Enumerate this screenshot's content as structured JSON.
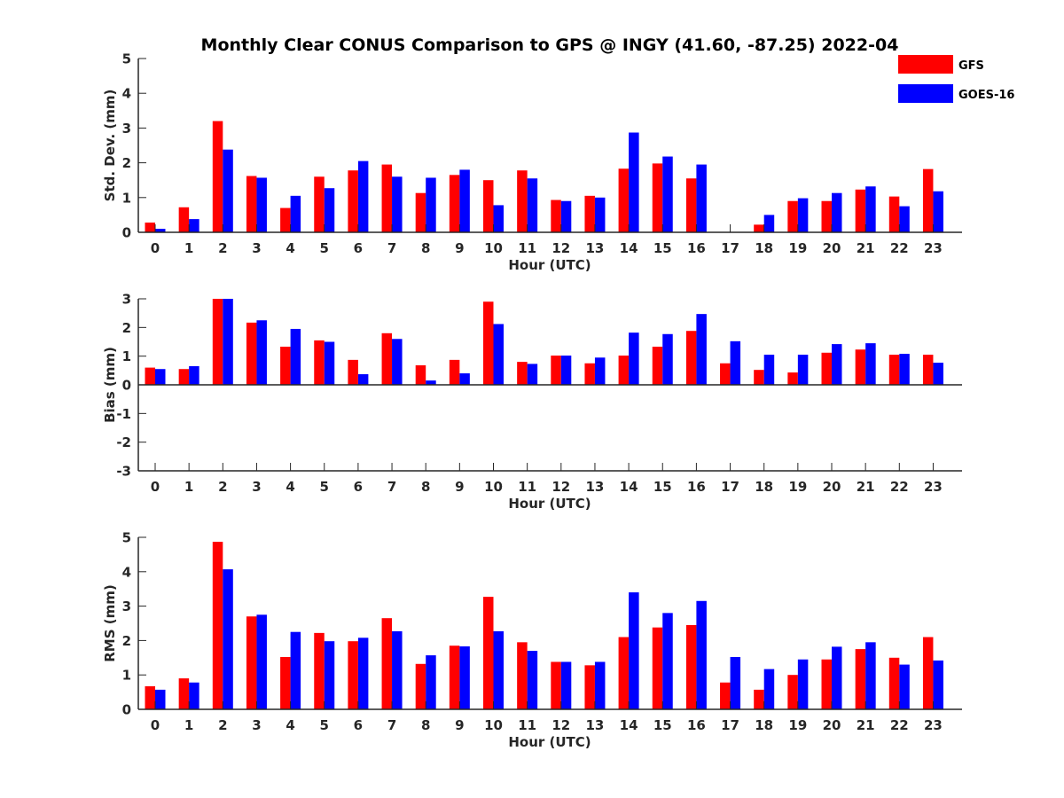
{
  "chart_data": {
    "title": "Monthly Clear CONUS Comparison to GPS @ INGY (41.60, -87.25) 2022-04",
    "legend": {
      "placement": "top-right",
      "entries": [
        "GFS",
        "GOES-16"
      ]
    },
    "colors": {
      "GFS": "#ff0000",
      "GOES-16": "#0000ff"
    },
    "categories": [
      "0",
      "1",
      "2",
      "3",
      "4",
      "5",
      "6",
      "7",
      "8",
      "9",
      "10",
      "11",
      "12",
      "13",
      "14",
      "15",
      "16",
      "17",
      "18",
      "19",
      "20",
      "21",
      "22",
      "23"
    ],
    "charts": [
      {
        "type": "bar",
        "xlabel": "Hour (UTC)",
        "ylabel": "Std. Dev. (mm)",
        "ylim": [
          0,
          5
        ],
        "yticks": [
          0,
          1,
          2,
          3,
          4,
          5
        ],
        "series": [
          {
            "name": "GFS",
            "values": [
              0.28,
              0.72,
              3.2,
              1.62,
              0.7,
              1.6,
              1.78,
              1.95,
              1.13,
              1.65,
              1.5,
              1.78,
              0.93,
              1.05,
              1.83,
              1.98,
              1.55,
              0,
              0.22,
              0.9,
              0.9,
              1.23,
              1.03,
              1.82
            ]
          },
          {
            "name": "GOES-16",
            "values": [
              0.1,
              0.38,
              2.38,
              1.57,
              1.05,
              1.27,
              2.05,
              1.6,
              1.57,
              1.8,
              0.78,
              1.55,
              0.9,
              1.0,
              2.87,
              2.18,
              1.95,
              0,
              0.5,
              0.98,
              1.13,
              1.32,
              0.75,
              1.18
            ]
          }
        ]
      },
      {
        "type": "bar",
        "xlabel": "Hour (UTC)",
        "ylabel": "Bias (mm)",
        "ylim": [
          -3,
          3
        ],
        "yticks": [
          -3,
          -2,
          -1,
          0,
          1,
          2,
          3
        ],
        "series": [
          {
            "name": "GFS",
            "values": [
              0.6,
              0.55,
              3.0,
              2.17,
              1.33,
              1.55,
              0.87,
              1.8,
              0.68,
              0.87,
              2.9,
              0.8,
              1.02,
              0.75,
              1.02,
              1.33,
              1.88,
              0.75,
              0.52,
              0.43,
              1.12,
              1.23,
              1.05,
              1.05
            ]
          },
          {
            "name": "GOES-16",
            "values": [
              0.55,
              0.65,
              3.0,
              2.25,
              1.95,
              1.5,
              0.37,
              1.6,
              0.15,
              0.4,
              2.12,
              0.73,
              1.02,
              0.95,
              1.82,
              1.77,
              2.47,
              1.52,
              1.05,
              1.05,
              1.42,
              1.45,
              1.08,
              0.77
            ]
          }
        ]
      },
      {
        "type": "bar",
        "xlabel": "Hour (UTC)",
        "ylabel": "RMS (mm)",
        "ylim": [
          0,
          5
        ],
        "yticks": [
          0,
          1,
          2,
          3,
          4,
          5
        ],
        "series": [
          {
            "name": "GFS",
            "values": [
              0.67,
              0.9,
              4.87,
              2.7,
              1.52,
              2.22,
              1.98,
              2.65,
              1.32,
              1.85,
              3.27,
              1.95,
              1.38,
              1.28,
              2.1,
              2.38,
              2.45,
              0.78,
              0.57,
              1.0,
              1.45,
              1.75,
              1.5,
              2.1
            ]
          },
          {
            "name": "GOES-16",
            "values": [
              0.57,
              0.78,
              4.07,
              2.75,
              2.25,
              1.98,
              2.08,
              2.27,
              1.57,
              1.83,
              2.27,
              1.7,
              1.38,
              1.38,
              3.4,
              2.8,
              3.15,
              1.52,
              1.17,
              1.45,
              1.82,
              1.95,
              1.3,
              1.42
            ]
          }
        ]
      }
    ]
  }
}
